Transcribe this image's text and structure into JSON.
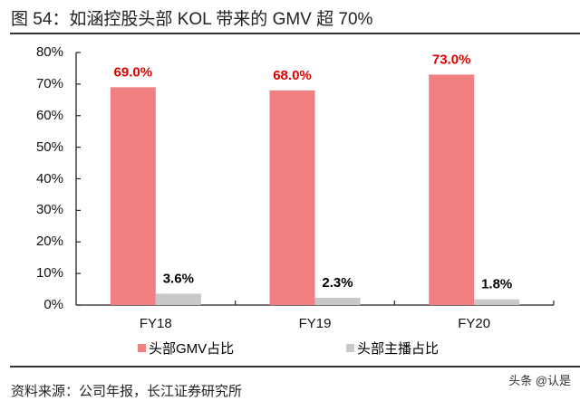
{
  "header": {
    "title": "图 54：如涵控股头部 KOL 带来的 GMV 超 70%"
  },
  "footer": {
    "source": "资料来源：公司年报，长江证券研究所",
    "watermark": "头条 @认是"
  },
  "colors": {
    "series1": "#f08080",
    "series2": "#c8c8c8",
    "series1_label": "#e00000",
    "series2_label": "#000000",
    "axis": "#222222"
  },
  "chart_data": {
    "type": "bar",
    "title": "如涵控股头部 KOL 带来的 GMV 超 70%",
    "xlabel": "",
    "ylabel": "",
    "categories": [
      "FY18",
      "FY19",
      "FY20"
    ],
    "series": [
      {
        "name": "头部GMV占比",
        "values": [
          69.0,
          68.0,
          73.0
        ],
        "labels": [
          "69.0%",
          "68.0%",
          "73.0%"
        ]
      },
      {
        "name": "头部主播占比",
        "values": [
          3.6,
          2.3,
          1.8
        ],
        "labels": [
          "3.6%",
          "2.3%",
          "1.8%"
        ]
      }
    ],
    "ylim": [
      0,
      80
    ],
    "yticks": [
      "0%",
      "10%",
      "20%",
      "30%",
      "40%",
      "50%",
      "60%",
      "70%",
      "80%"
    ],
    "grid": false,
    "legend_position": "bottom"
  }
}
